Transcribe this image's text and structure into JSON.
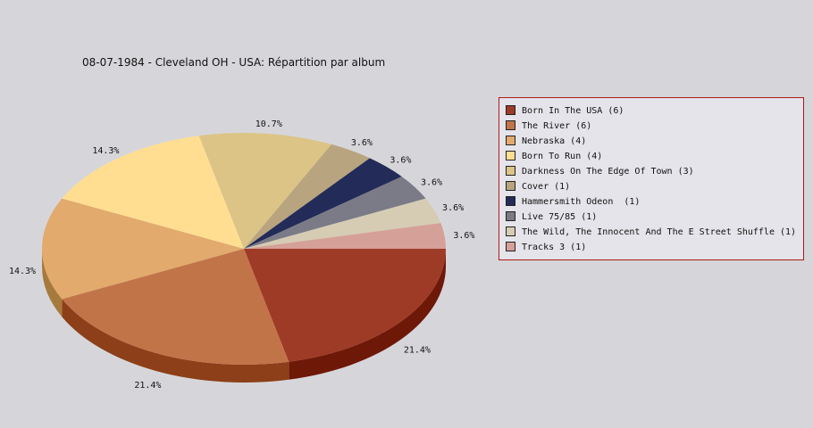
{
  "chart_data": {
    "type": "pie",
    "title": "08-07-1984 - Cleveland OH - USA:  Répartition par album",
    "legend_position": "right",
    "slices": [
      {
        "label": "Born In The USA",
        "count": 6,
        "legend": "Born In The USA (6)",
        "pct": "21.4%",
        "color": "#9e3b26",
        "side": "#6e1808"
      },
      {
        "label": "The River",
        "count": 6,
        "legend": "The River (6)",
        "pct": "21.4%",
        "color": "#c27449",
        "side": "#8c3f18"
      },
      {
        "label": "Nebraska",
        "count": 4,
        "legend": "Nebraska (4)",
        "pct": "14.3%",
        "color": "#e2aa6c",
        "side": "#a67a3c"
      },
      {
        "label": "Born To Run",
        "count": 4,
        "legend": "Born To Run (4)",
        "pct": "14.3%",
        "color": "#ffde92",
        "side": "#c8a860"
      },
      {
        "label": "Darkness On The Edge Of Town",
        "count": 3,
        "legend": "Darkness On The Edge Of Town (3)",
        "pct": "10.7%",
        "color": "#dcc486",
        "side": "#a89050"
      },
      {
        "label": "Cover",
        "count": 1,
        "legend": "Cover (1)",
        "pct": "3.6%",
        "color": "#b8a47e",
        "side": "#86744e"
      },
      {
        "label": "Hammersmith Odeon",
        "count": 1,
        "legend": "Hammersmith Odeon  (1)",
        "pct": "3.6%",
        "color": "#232b58",
        "side": "#10153a"
      },
      {
        "label": "Live 75/85",
        "count": 1,
        "legend": "Live 75/85 (1)",
        "pct": "3.6%",
        "color": "#7b7b87",
        "side": "#54545e"
      },
      {
        "label": "The Wild, The Innocent And The E Street Shuffle",
        "count": 1,
        "legend": "The Wild, The Innocent And The E Street Shuffle (1)",
        "pct": "3.6%",
        "color": "#d6ccb4",
        "side": "#a49a84"
      },
      {
        "label": "Tracks 3",
        "count": 1,
        "legend": "Tracks 3 (1)",
        "pct": "3.6%",
        "color": "#d5a098",
        "side": "#a4726a"
      }
    ]
  }
}
